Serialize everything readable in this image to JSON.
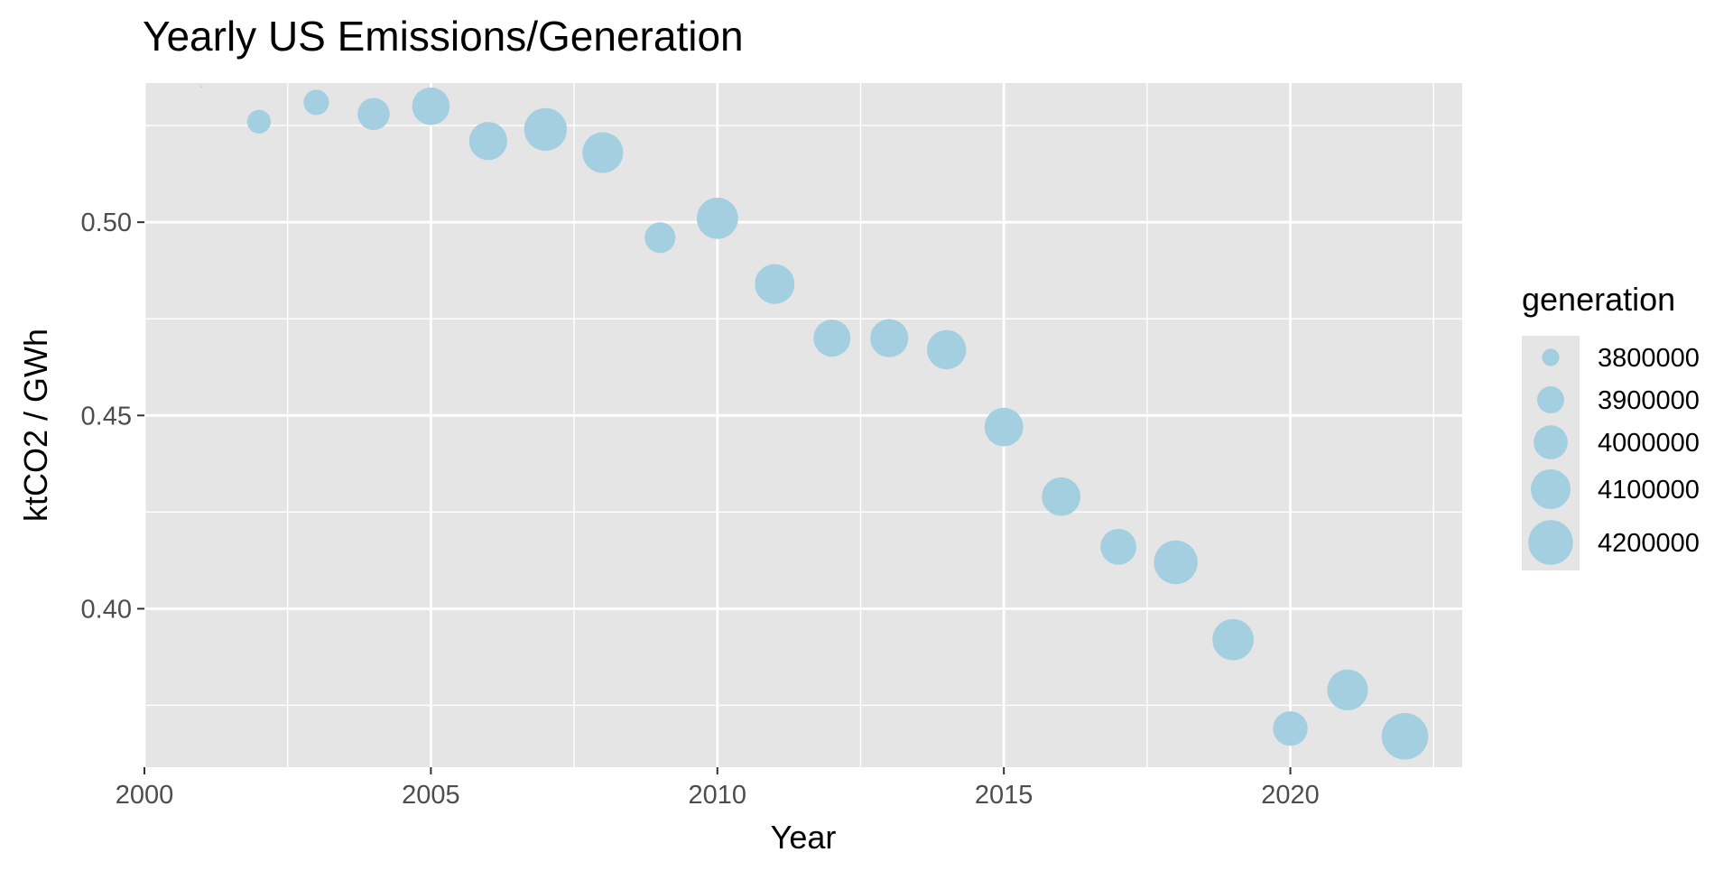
{
  "chart_data": {
    "type": "scatter",
    "title": "Yearly US Emissions/Generation",
    "xlabel": "Year",
    "ylabel": "ktCO2 / GWh",
    "xlim": [
      2000,
      2023
    ],
    "ylim": [
      0.359,
      0.536
    ],
    "x_ticks": [
      2000,
      2005,
      2010,
      2015,
      2020
    ],
    "x_tick_labels": [
      "2000",
      "2005",
      "2010",
      "2015",
      "2020"
    ],
    "y_ticks": [
      0.4,
      0.45,
      0.5
    ],
    "y_tick_labels": [
      "0.40",
      "0.45",
      "0.50"
    ],
    "grid": true,
    "point_color": "#a3cfe0",
    "panel_color": "#e5e5e5",
    "grid_color": "#ffffff",
    "size_range": [
      3740000,
      4250000
    ],
    "legend": {
      "title": "generation",
      "position": "right",
      "values": [
        3800000,
        3900000,
        4000000,
        4100000,
        4200000
      ],
      "labels": [
        "3800000",
        "3900000",
        "4000000",
        "4100000",
        "4200000"
      ]
    },
    "points": [
      {
        "x": 2001,
        "y": 0.535,
        "size": 3740000
      },
      {
        "x": 2002,
        "y": 0.526,
        "size": 3860000
      },
      {
        "x": 2003,
        "y": 0.531,
        "size": 3880000
      },
      {
        "x": 2004,
        "y": 0.528,
        "size": 3970000
      },
      {
        "x": 2005,
        "y": 0.53,
        "size": 4060000
      },
      {
        "x": 2006,
        "y": 0.521,
        "size": 4070000
      },
      {
        "x": 2007,
        "y": 0.524,
        "size": 4160000
      },
      {
        "x": 2008,
        "y": 0.518,
        "size": 4120000
      },
      {
        "x": 2009,
        "y": 0.496,
        "size": 3950000
      },
      {
        "x": 2010,
        "y": 0.501,
        "size": 4130000
      },
      {
        "x": 2011,
        "y": 0.484,
        "size": 4100000
      },
      {
        "x": 2012,
        "y": 0.47,
        "size": 4050000
      },
      {
        "x": 2013,
        "y": 0.47,
        "size": 4070000
      },
      {
        "x": 2014,
        "y": 0.467,
        "size": 4090000
      },
      {
        "x": 2015,
        "y": 0.447,
        "size": 4080000
      },
      {
        "x": 2016,
        "y": 0.429,
        "size": 4080000
      },
      {
        "x": 2017,
        "y": 0.416,
        "size": 4030000
      },
      {
        "x": 2018,
        "y": 0.412,
        "size": 4180000
      },
      {
        "x": 2019,
        "y": 0.392,
        "size": 4130000
      },
      {
        "x": 2020,
        "y": 0.369,
        "size": 4010000
      },
      {
        "x": 2021,
        "y": 0.379,
        "size": 4120000
      },
      {
        "x": 2022,
        "y": 0.367,
        "size": 4240000
      }
    ]
  }
}
